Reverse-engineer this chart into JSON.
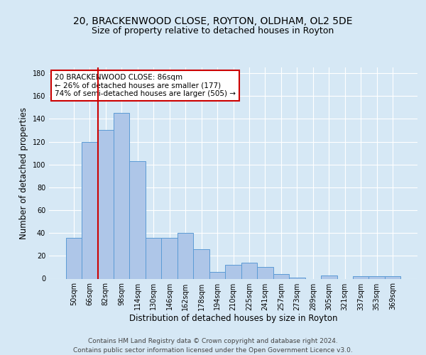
{
  "title_line1": "20, BRACKENWOOD CLOSE, ROYTON, OLDHAM, OL2 5DE",
  "title_line2": "Size of property relative to detached houses in Royton",
  "xlabel": "Distribution of detached houses by size in Royton",
  "ylabel": "Number of detached properties",
  "categories": [
    "50sqm",
    "66sqm",
    "82sqm",
    "98sqm",
    "114sqm",
    "130sqm",
    "146sqm",
    "162sqm",
    "178sqm",
    "194sqm",
    "210sqm",
    "225sqm",
    "241sqm",
    "257sqm",
    "273sqm",
    "289sqm",
    "305sqm",
    "321sqm",
    "337sqm",
    "353sqm",
    "369sqm"
  ],
  "values": [
    36,
    120,
    130,
    145,
    103,
    36,
    36,
    40,
    26,
    6,
    12,
    14,
    10,
    4,
    1,
    0,
    3,
    0,
    2,
    2,
    2
  ],
  "bar_color": "#aec6e8",
  "bar_edge_color": "#5b9bd5",
  "vline_index": 1.5,
  "vline_color": "#cc0000",
  "annotation_text": "20 BRACKENWOOD CLOSE: 86sqm\n← 26% of detached houses are smaller (177)\n74% of semi-detached houses are larger (505) →",
  "annotation_box_color": "#ffffff",
  "annotation_box_edge": "#cc0000",
  "ylim": [
    0,
    185
  ],
  "yticks": [
    0,
    20,
    40,
    60,
    80,
    100,
    120,
    140,
    160,
    180
  ],
  "footer_line1": "Contains HM Land Registry data © Crown copyright and database right 2024.",
  "footer_line2": "Contains public sector information licensed under the Open Government Licence v3.0.",
  "background_color": "#d6e8f5",
  "plot_bg_color": "#d6e8f5",
  "grid_color": "#ffffff",
  "title_fontsize": 10,
  "subtitle_fontsize": 9,
  "axis_label_fontsize": 8.5,
  "tick_fontsize": 7,
  "annotation_fontsize": 7.5,
  "footer_fontsize": 6.5
}
